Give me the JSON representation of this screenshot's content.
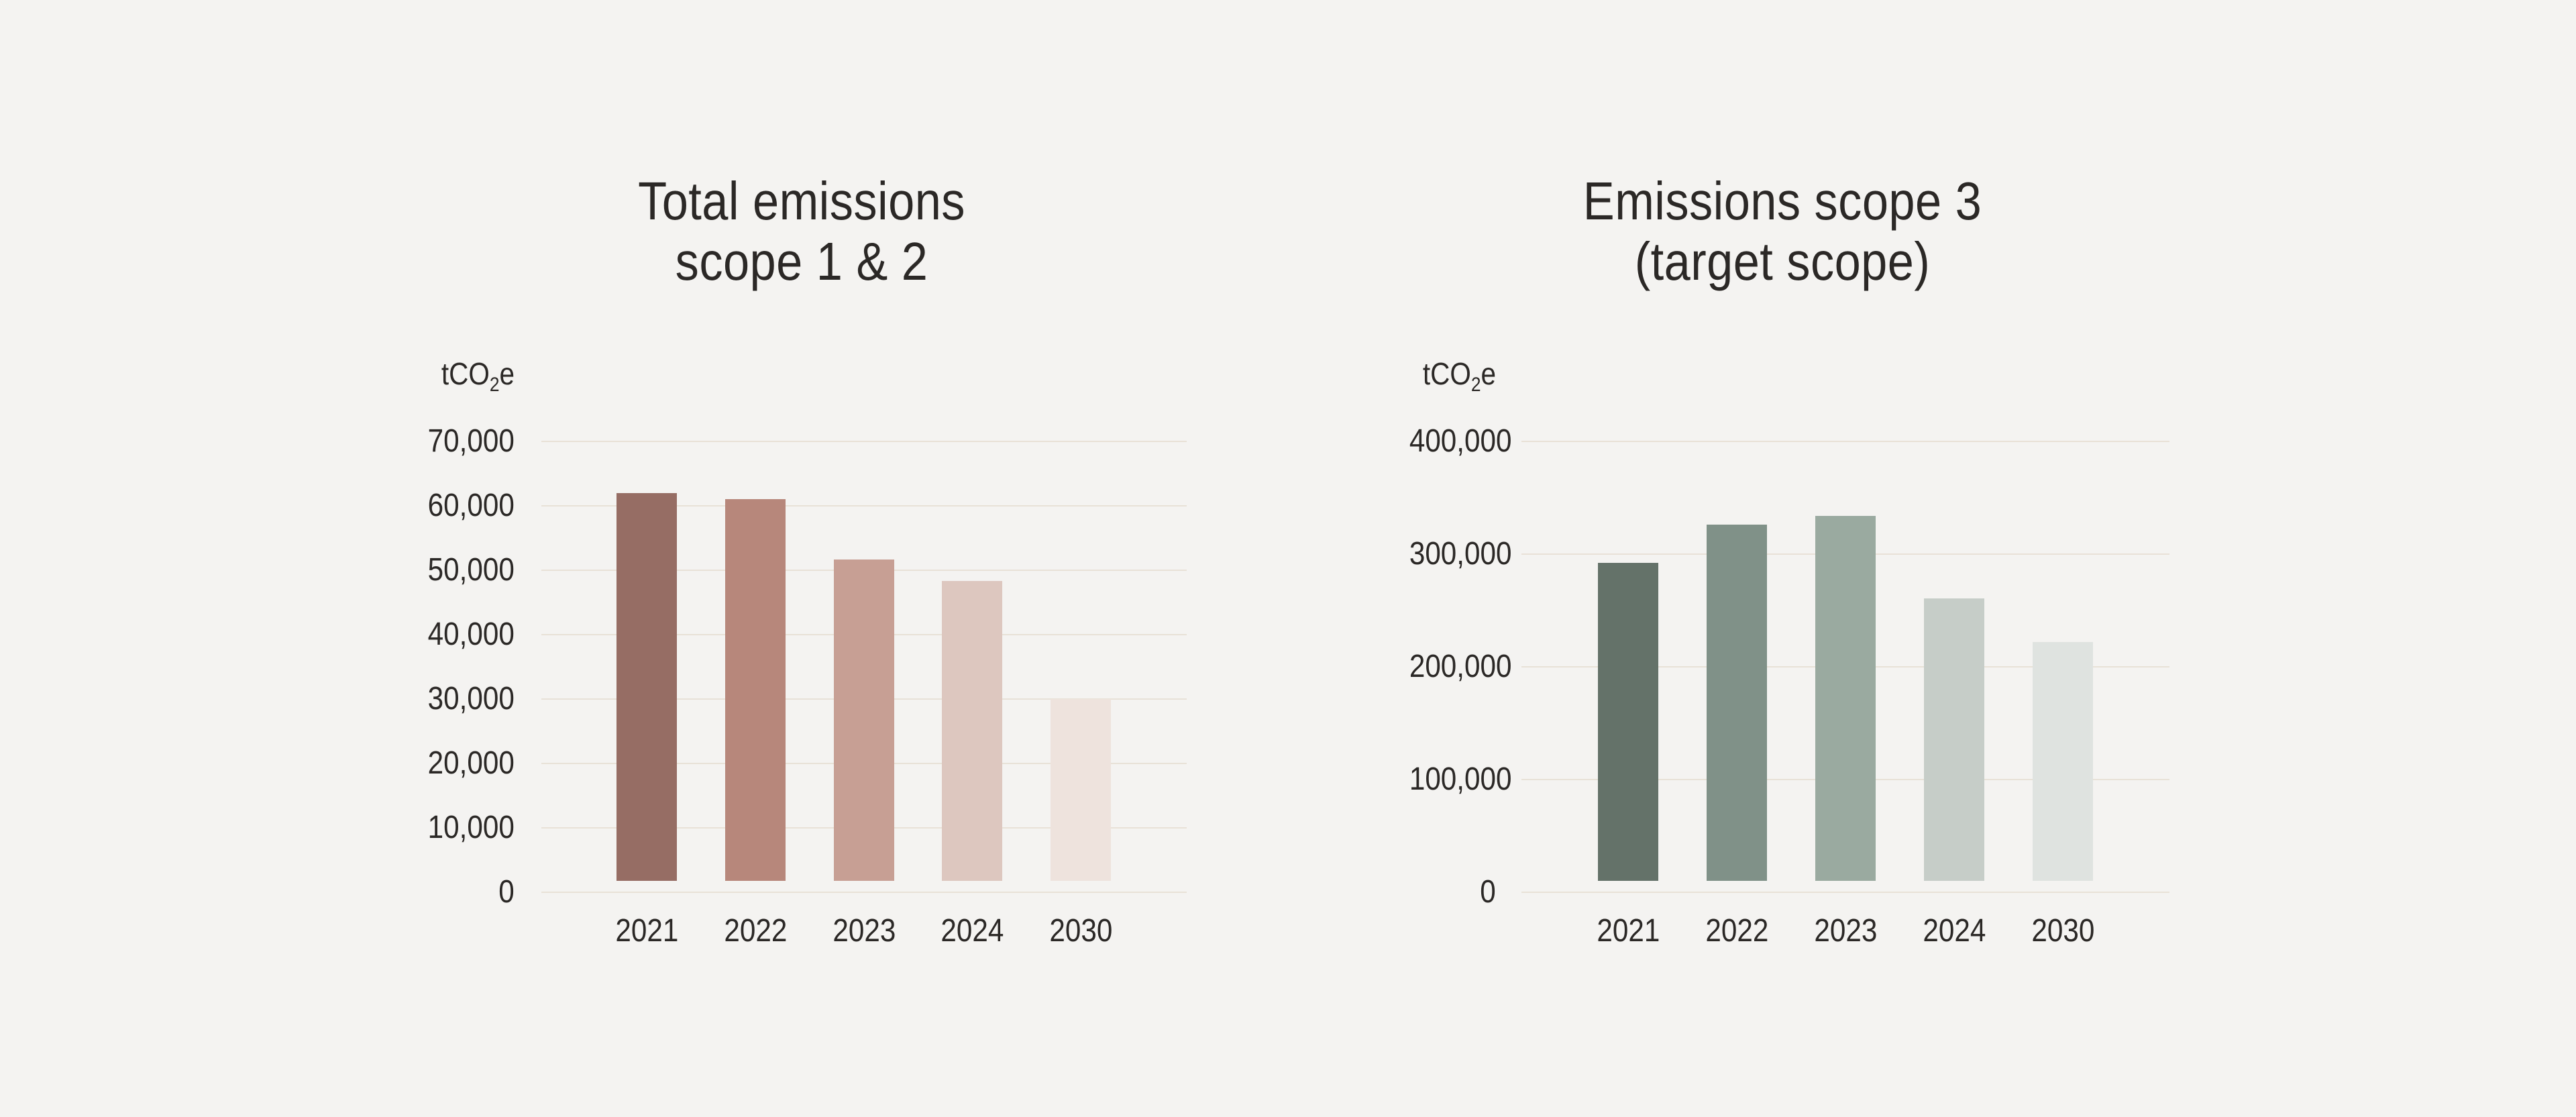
{
  "page": {
    "background_color": "#f4f3f1",
    "gridline_color": "#e8e1d7",
    "text_color": "#2b2826"
  },
  "chart_data": [
    {
      "type": "bar",
      "title_lines": [
        "Total emissions",
        "scope 1 & 2"
      ],
      "unit": {
        "pre": "tCO",
        "sub": "2",
        "post": "e"
      },
      "categories": [
        "2021",
        "2022",
        "2023",
        "2024",
        "2030"
      ],
      "values": [
        62000,
        61000,
        51700,
        48300,
        30000
      ],
      "bar_colors": [
        "#966d64",
        "#b7877b",
        "#c79f94",
        "#ddc7bf",
        "#eee3dd"
      ],
      "ylim": [
        0,
        70000
      ],
      "ytick_values": [
        0,
        10000,
        20000,
        30000,
        40000,
        50000,
        60000,
        70000
      ],
      "ytick_labels": [
        "0",
        "10,000",
        "20,000",
        "30,000",
        "40,000",
        "50,000",
        "60,000",
        "70,000"
      ],
      "grid": true,
      "legend": null
    },
    {
      "type": "bar",
      "title_lines": [
        "Emissions scope 3",
        "(target scope)"
      ],
      "unit": {
        "pre": "tCO",
        "sub": "2",
        "post": "e"
      },
      "categories": [
        "2021",
        "2022",
        "2023",
        "2024",
        "2030"
      ],
      "values": [
        292000,
        326000,
        334000,
        261000,
        222000
      ],
      "bar_colors": [
        "#647269",
        "#809188",
        "#9aaaa0",
        "#c6cdc8",
        "#dfe3e0"
      ],
      "ylim": [
        0,
        400000
      ],
      "ytick_values": [
        0,
        100000,
        200000,
        300000,
        400000
      ],
      "ytick_labels": [
        "0",
        "100,000",
        "200,000",
        "300,000",
        "400,000"
      ],
      "grid": true,
      "legend": null
    }
  ]
}
